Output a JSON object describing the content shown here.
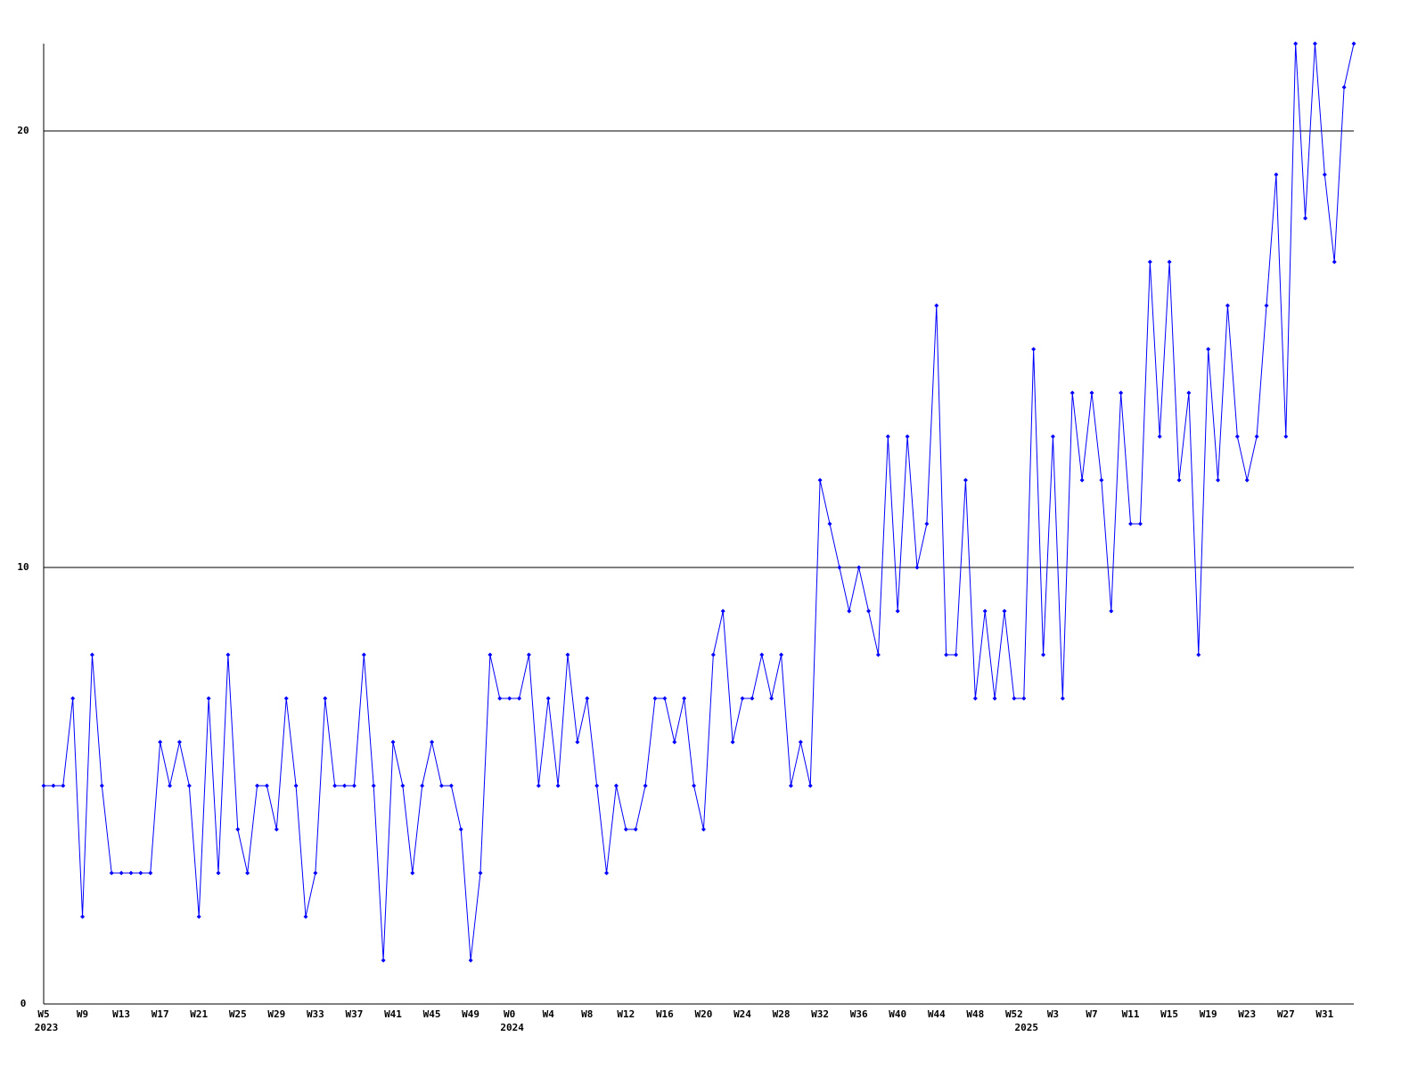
{
  "chart_data": {
    "type": "line",
    "categories": [
      "W5",
      null,
      null,
      null,
      "W9",
      null,
      null,
      null,
      "W13",
      null,
      null,
      null,
      "W17",
      null,
      null,
      null,
      "W21",
      null,
      null,
      null,
      "W25",
      null,
      null,
      null,
      "W29",
      null,
      null,
      null,
      "W33",
      null,
      null,
      null,
      "W37",
      null,
      null,
      null,
      "W41",
      null,
      null,
      null,
      "W45",
      null,
      null,
      null,
      "W49",
      null,
      null,
      null,
      "W0",
      null,
      null,
      null,
      "W4",
      null,
      null,
      null,
      "W8",
      null,
      null,
      null,
      "W12",
      null,
      null,
      null,
      "W16",
      null,
      null,
      null,
      "W20",
      null,
      null,
      null,
      "W24",
      null,
      null,
      null,
      "W28",
      null,
      null,
      null,
      "W32",
      null,
      null,
      null,
      "W36",
      null,
      null,
      null,
      "W40",
      null,
      null,
      null,
      "W44",
      null,
      null,
      null,
      "W48",
      null,
      null,
      null,
      "W52",
      null,
      null,
      null,
      "W3",
      null,
      null,
      null,
      "W7",
      null,
      null,
      null,
      "W11",
      null,
      null,
      null,
      "W15",
      null,
      null,
      null,
      "W19",
      null,
      null,
      null,
      "W23",
      null,
      null,
      null,
      "W27",
      null,
      null,
      null,
      "W31",
      null,
      null,
      null
    ],
    "category_years": [
      "2023",
      null,
      null,
      null,
      null,
      null,
      null,
      null,
      null,
      null,
      null,
      null,
      null,
      null,
      null,
      null,
      null,
      null,
      null,
      null,
      null,
      null,
      null,
      null,
      null,
      null,
      null,
      null,
      null,
      null,
      null,
      null,
      null,
      null,
      null,
      null,
      null,
      null,
      null,
      null,
      null,
      null,
      null,
      null,
      null,
      null,
      null,
      null,
      "2024",
      null,
      null,
      null,
      null,
      null,
      null,
      null,
      null,
      null,
      null,
      null,
      null,
      null,
      null,
      null,
      null,
      null,
      null,
      null,
      null,
      null,
      null,
      null,
      null,
      null,
      null,
      null,
      null,
      null,
      null,
      null,
      null,
      null,
      null,
      null,
      null,
      null,
      null,
      null,
      null,
      null,
      null,
      null,
      null,
      null,
      null,
      null,
      null,
      null,
      null,
      null,
      null,
      "2025",
      null,
      null,
      null,
      null,
      null,
      null,
      null,
      null,
      null,
      null,
      null,
      null,
      null,
      null,
      null,
      null,
      null,
      null,
      null,
      null,
      null,
      null,
      null,
      null,
      null,
      null,
      null,
      null,
      null,
      null,
      null,
      null,
      null,
      null
    ],
    "series": [
      {
        "color": "#0000ff",
        "values": [
          5,
          5,
          5,
          7,
          2,
          8,
          5,
          3,
          3,
          3,
          3,
          3,
          6,
          5,
          6,
          5,
          2,
          7,
          3,
          8,
          4,
          3,
          5,
          5,
          4,
          7,
          5,
          2,
          3,
          7,
          5,
          5,
          5,
          8,
          5,
          1,
          6,
          5,
          3,
          5,
          6,
          5,
          5,
          4,
          1,
          3,
          8,
          7,
          7,
          7,
          8,
          5,
          7,
          5,
          8,
          6,
          7,
          5,
          3,
          5,
          4,
          4,
          5,
          7,
          7,
          6,
          7,
          5,
          4,
          8,
          9,
          6,
          7,
          7,
          8,
          7,
          8,
          5,
          6,
          5,
          12,
          11,
          10,
          9,
          10,
          9,
          8,
          13,
          9,
          13,
          10,
          11,
          16,
          8,
          8,
          12,
          7,
          9,
          7,
          9,
          7,
          7,
          15,
          8,
          13,
          7,
          14,
          12,
          14,
          12,
          9,
          14,
          11,
          11,
          17,
          13,
          17,
          12,
          14,
          8,
          15,
          12,
          16,
          13,
          12,
          13,
          16,
          19,
          13,
          22,
          18,
          22,
          19,
          17,
          21,
          22
        ]
      }
    ],
    "ylim": [
      0,
      22
    ],
    "yticks": [
      0,
      10,
      20
    ],
    "grid": true
  }
}
